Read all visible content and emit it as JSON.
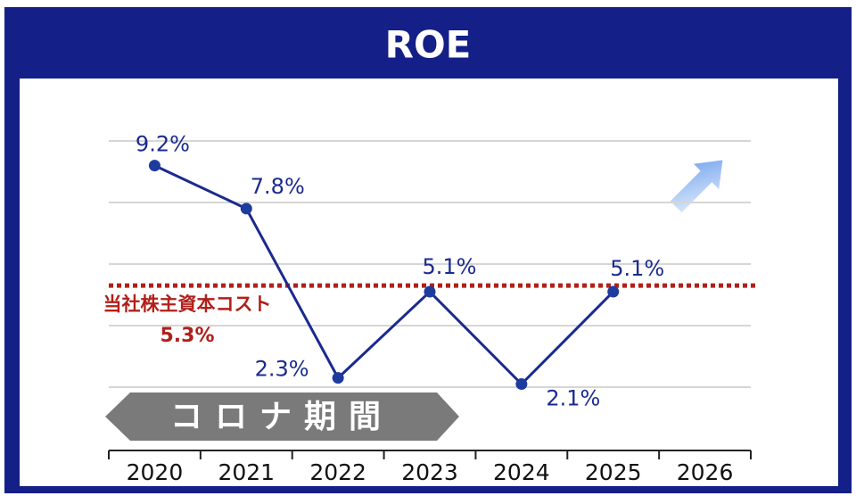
{
  "chart_data": {
    "type": "line",
    "title": "ROE",
    "categories": [
      "2020",
      "2021",
      "2022",
      "2023",
      "2024",
      "2025",
      "2026"
    ],
    "series": [
      {
        "name": "ROE",
        "color": "#1b2a8f",
        "values": [
          9.2,
          7.8,
          2.3,
          5.1,
          2.1,
          5.1,
          null
        ],
        "value_labels": [
          "9.2%",
          "7.8%",
          "2.3%",
          "5.1%",
          "2.1%",
          "5.1%",
          null
        ]
      }
    ],
    "ylim": [
      0,
      10
    ],
    "yticks": [
      2,
      4,
      6,
      8,
      10
    ],
    "grid": true,
    "reference_line": {
      "label": "当社株主資本コスト",
      "value": 5.3,
      "value_label": "5.3%",
      "color": "#b0201a"
    },
    "annotation": "コロナ期間"
  }
}
